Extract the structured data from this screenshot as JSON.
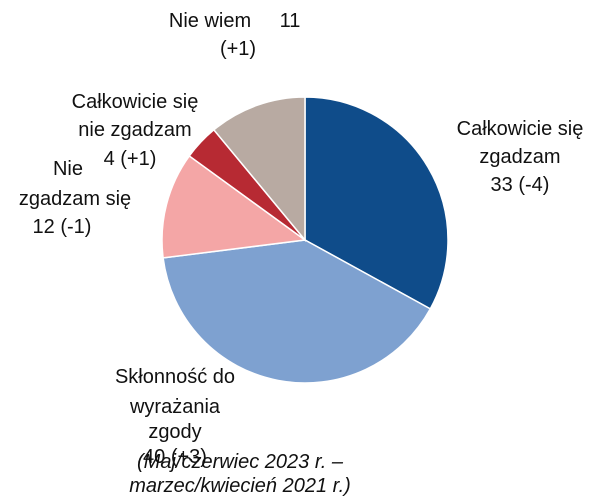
{
  "chart_data": {
    "type": "pie",
    "categories": [
      "Całkowicie się zgadzam",
      "Skłonność do wyrażania zgody",
      "Nie zgadzam się",
      "Całkowicie się nie zgadzam",
      "Nie wiem"
    ],
    "values": [
      33,
      40,
      12,
      4,
      11
    ],
    "value_labels": [
      "33 (-4)",
      "40 (+3)",
      "12 (-1)",
      "4 (+1)",
      "11 (+1)"
    ],
    "colors": [
      "#0f4c8a",
      "#7ea1d0",
      "#f4a6a6",
      "#b72a33",
      "#b8aaa2"
    ],
    "footnote": "(Maj/czerwiec 2023 r. – marzec/kwiecień 2021 r.)"
  }
}
